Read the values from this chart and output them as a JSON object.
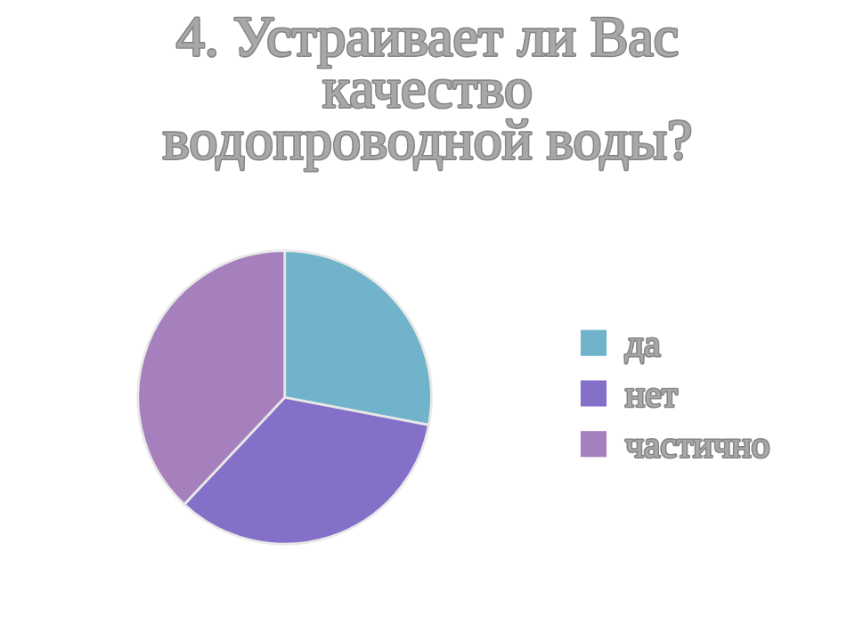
{
  "chart_data": {
    "type": "pie",
    "title": "4. Устраивает ли Вас качество водопроводной воды?",
    "categories": [
      "да",
      "нет",
      "частично"
    ],
    "values": [
      28,
      34,
      38
    ],
    "colors": [
      "#70b3ca",
      "#8470c8",
      "#a67fbd"
    ],
    "legend": "right"
  }
}
